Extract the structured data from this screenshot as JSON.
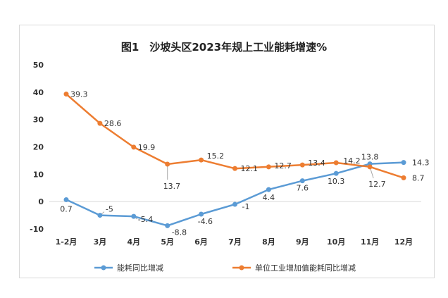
{
  "chart_data": {
    "type": "line",
    "title": "图1　沙坡头区2023年规上工业能耗增速%",
    "categories": [
      "1-2月",
      "3月",
      "4月",
      "5月",
      "6月",
      "7月",
      "8月",
      "9月",
      "10月",
      "11月",
      "12月"
    ],
    "ylim": [
      -10,
      50
    ],
    "yticks": [
      "50",
      "40",
      "30",
      "20",
      "10",
      "0",
      "-10"
    ],
    "grid": false,
    "legend_placement": "bottom",
    "series": [
      {
        "name": "能耗同比增减",
        "color": "#5B9BD5",
        "values": [
          0.7,
          -5,
          -5.4,
          -8.8,
          -4.6,
          -1,
          4.4,
          7.6,
          10.3,
          13.8,
          14.3
        ],
        "labels": [
          "0.7",
          "-5",
          "-5.4",
          "-8.8",
          "-4.6",
          "-1",
          "4.4",
          "7.6",
          "10.3",
          "13.8",
          "14.3"
        ]
      },
      {
        "name": "单位工业增加值能耗同比增减",
        "color": "#ED7D31",
        "values": [
          39.3,
          28.6,
          19.9,
          13.7,
          15.2,
          12.1,
          12.7,
          13.4,
          14.2,
          12.7,
          8.7
        ],
        "labels": [
          "39.3",
          "28.6",
          "19.9",
          "13.7",
          "15.2",
          "12.1",
          "12.7",
          "13.4",
          "14.2",
          "12.7",
          "8.7"
        ]
      }
    ]
  }
}
